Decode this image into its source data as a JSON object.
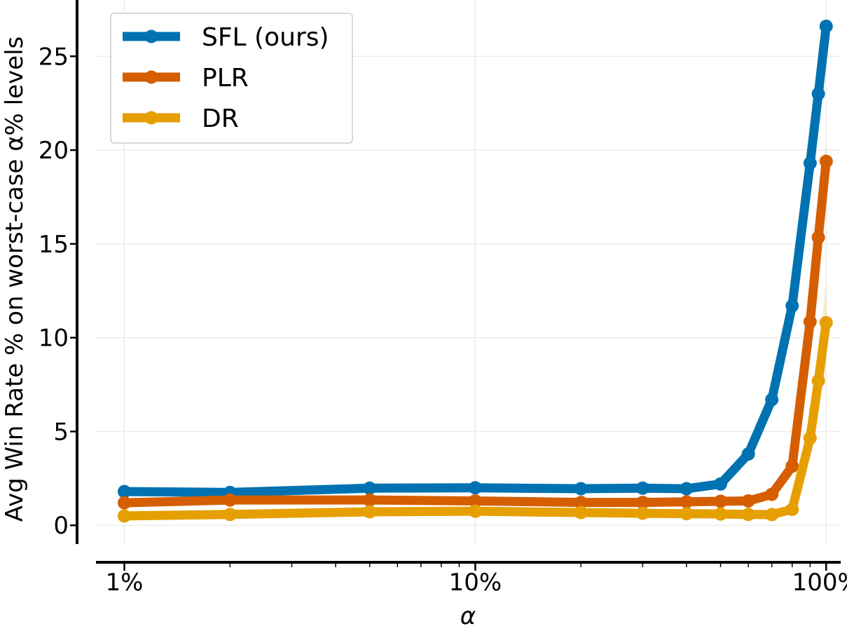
{
  "chart_data": {
    "type": "line",
    "title": "",
    "xlabel": "α",
    "ylabel": "Avg Win Rate % on worst-case α% levels",
    "x_scale": "log",
    "xlim": [
      0.83,
      110
    ],
    "ylim": [
      -1.0,
      28.0
    ],
    "x_ticks": [
      {
        "value": 1,
        "label": "1%"
      },
      {
        "value": 10,
        "label": "10%"
      },
      {
        "value": 100,
        "label": "100%"
      }
    ],
    "y_ticks": [
      {
        "value": 0,
        "label": "0"
      },
      {
        "value": 5,
        "label": "5"
      },
      {
        "value": 10,
        "label": "10"
      },
      {
        "value": 15,
        "label": "15"
      },
      {
        "value": 20,
        "label": "20"
      },
      {
        "value": 25,
        "label": "25"
      }
    ],
    "grid": true,
    "legend_position": "top-left",
    "series": [
      {
        "name": "SFL (ours)",
        "color": "#0072b2",
        "x": [
          1,
          2,
          5,
          10,
          20,
          30,
          40,
          50,
          60,
          70,
          80,
          90,
          95,
          100
        ],
        "y": [
          1.8,
          1.75,
          1.98,
          2.0,
          1.95,
          1.98,
          1.95,
          2.2,
          3.8,
          6.7,
          11.7,
          19.3,
          23.0,
          26.6
        ],
        "band": [
          0.15,
          0.1,
          0.05,
          0.05,
          0.05,
          0.05,
          0.05,
          0.08,
          0.15,
          0.2,
          0.3,
          0.3,
          0.3,
          0.3
        ]
      },
      {
        "name": "PLR",
        "color": "#d55e00",
        "x": [
          1,
          2,
          5,
          10,
          20,
          30,
          40,
          50,
          60,
          70,
          80,
          90,
          95,
          100
        ],
        "y": [
          1.2,
          1.35,
          1.35,
          1.3,
          1.22,
          1.22,
          1.25,
          1.28,
          1.3,
          1.65,
          3.15,
          10.85,
          15.35,
          19.4
        ],
        "band": [
          0.05,
          0.05,
          0.05,
          0.05,
          0.05,
          0.05,
          0.05,
          0.05,
          0.1,
          0.2,
          0.5,
          1.5,
          1.2,
          1.0
        ]
      },
      {
        "name": "DR",
        "color": "#e69f00",
        "x": [
          1,
          2,
          5,
          10,
          20,
          30,
          40,
          50,
          60,
          70,
          80,
          90,
          95,
          100
        ],
        "y": [
          0.5,
          0.58,
          0.72,
          0.75,
          0.68,
          0.64,
          0.62,
          0.6,
          0.58,
          0.57,
          0.85,
          4.65,
          7.7,
          10.8
        ],
        "band": [
          0.05,
          0.05,
          0.05,
          0.05,
          0.05,
          0.05,
          0.05,
          0.05,
          0.05,
          0.05,
          0.15,
          0.8,
          1.5,
          2.2
        ]
      }
    ]
  }
}
